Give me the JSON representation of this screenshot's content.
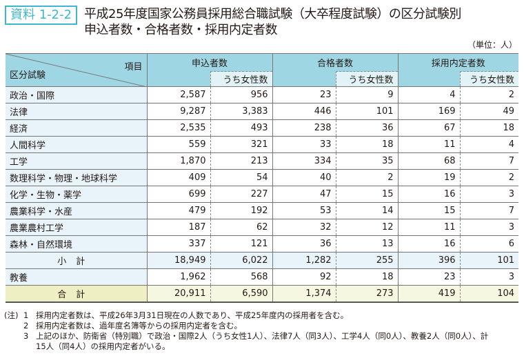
{
  "badge": "資料 1-2-2",
  "title_line1": "平成25年度国家公務員採用総合職試験（大卒程度試験）の区分試験別",
  "title_line2": "申込者数・合格者数・採用内定者数",
  "unit": "（単位：人）",
  "table": {
    "corner_top": "項目",
    "corner_bottom": "区分試験",
    "groups": [
      "申込者数",
      "合格者数",
      "採用内定者数"
    ],
    "sub_label": "うち女性数",
    "rows": [
      {
        "label": "政治・国際",
        "values": [
          "2,587",
          "956",
          "23",
          "9",
          "4",
          "2"
        ]
      },
      {
        "label": "法律",
        "values": [
          "9,287",
          "3,383",
          "446",
          "101",
          "169",
          "49"
        ]
      },
      {
        "label": "経済",
        "values": [
          "2,535",
          "493",
          "238",
          "36",
          "67",
          "18"
        ]
      },
      {
        "label": "人間科学",
        "values": [
          "559",
          "321",
          "33",
          "18",
          "11",
          "4"
        ]
      },
      {
        "label": "工学",
        "values": [
          "1,870",
          "213",
          "334",
          "35",
          "68",
          "7"
        ]
      },
      {
        "label": "数理科学・物理・地球科学",
        "values": [
          "409",
          "54",
          "40",
          "2",
          "19",
          "2"
        ]
      },
      {
        "label": "化学・生物・薬学",
        "values": [
          "699",
          "227",
          "47",
          "15",
          "16",
          "3"
        ]
      },
      {
        "label": "農業科学・水産",
        "values": [
          "479",
          "192",
          "53",
          "14",
          "15",
          "7"
        ]
      },
      {
        "label": "農業農村工学",
        "values": [
          "187",
          "62",
          "32",
          "12",
          "11",
          "3"
        ]
      },
      {
        "label": "森林・自然環境",
        "values": [
          "337",
          "121",
          "36",
          "13",
          "16",
          "6"
        ]
      },
      {
        "label": "小計",
        "values": [
          "18,949",
          "6,022",
          "1,282",
          "255",
          "396",
          "101"
        ],
        "kind": "subtotal"
      },
      {
        "label": "教養",
        "values": [
          "1,962",
          "568",
          "92",
          "18",
          "23",
          "3"
        ]
      },
      {
        "label": "合計",
        "values": [
          "20,911",
          "6,590",
          "1,374",
          "273",
          "419",
          "104"
        ],
        "kind": "total"
      }
    ]
  },
  "notes": {
    "prefix": "(注)",
    "items": [
      {
        "num": "1",
        "text": "採用内定者数は、平成26年3月31日現在の人数であり、平成25年度内の採用者を含む。"
      },
      {
        "num": "2",
        "text": "採用内定者数は、過年度名簿等からの採用内定者を含む。"
      },
      {
        "num": "3",
        "text": "上記のほか、防衛省（特別職）で政治・国際2人（うち女性1人）、法律7人（同3人）、工学4人（同0人）、教養2人（同0人）、計"
      },
      {
        "num": "",
        "text": "15人（同4人）の採用内定者がいる。"
      }
    ]
  },
  "colors": {
    "header": "#9fd6e4",
    "label_bg": "#e8f4fa",
    "total_bg": "#eef0c4",
    "badge": "#3fb6cc"
  }
}
